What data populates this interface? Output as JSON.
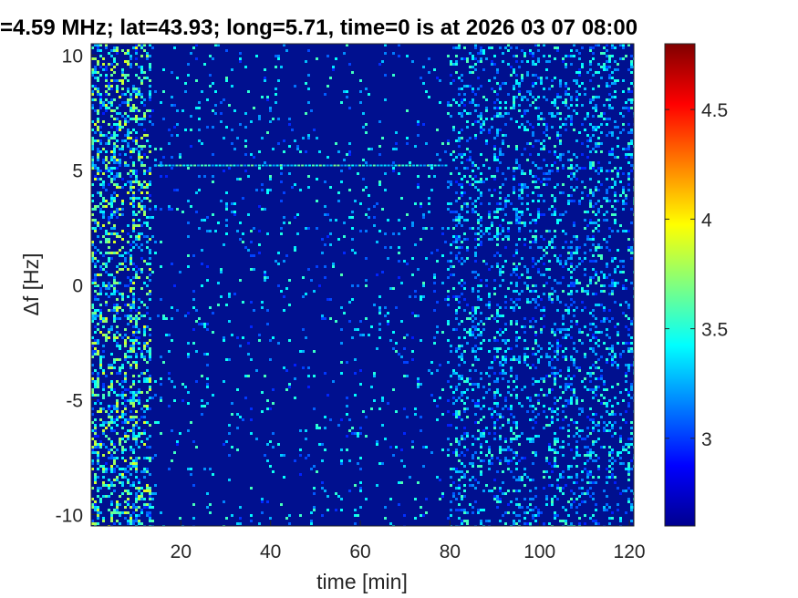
{
  "chart_data": {
    "type": "heatmap",
    "title": "=4.59 MHz;  lat=43.93; long=5.71, time=0 is at 2026 03 07 08:00",
    "xlabel": "time [min]",
    "ylabel": "Δf [Hz]",
    "xlim": [
      0,
      121
    ],
    "ylim": [
      -10.5,
      10.5
    ],
    "x_ticks": [
      20,
      40,
      60,
      80,
      100,
      120
    ],
    "x_tick_labels": [
      "20",
      "40",
      "60",
      "80",
      "100",
      "120"
    ],
    "y_ticks": [
      -10,
      -5,
      0,
      5,
      10
    ],
    "y_tick_labels": [
      "-10",
      "-5",
      "0",
      "5",
      "10"
    ],
    "colorbar": {
      "colormap": "jet",
      "clim": [
        2.6,
        4.8
      ],
      "ticks": [
        3,
        3.5,
        4,
        4.5
      ],
      "tick_labels": [
        "3",
        "3.5",
        "4",
        "4.5"
      ]
    },
    "noise_regions": [
      {
        "x_range": [
          0,
          13
        ],
        "level": "high"
      },
      {
        "x_range": [
          13,
          79
        ],
        "level": "low"
      },
      {
        "x_range": [
          79,
          121
        ],
        "level": "medium"
      }
    ],
    "spectral_lines": [
      {
        "df_hz": 5.2,
        "x_range": [
          14,
          79
        ]
      }
    ],
    "grid": false
  },
  "colors": {
    "background": "#ffffff",
    "axis": "#262626",
    "plot_floor": "#00108f"
  }
}
